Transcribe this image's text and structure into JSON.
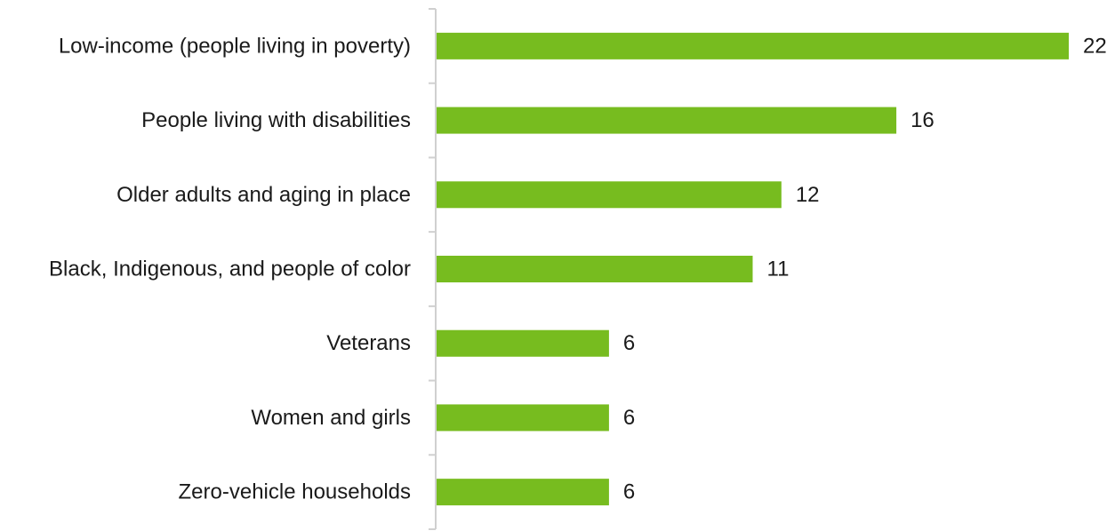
{
  "chart_data": {
    "type": "bar",
    "orientation": "horizontal",
    "categories": [
      "Low-income (people living in poverty)",
      "People living with disabilities",
      "Older adults and aging in place",
      "Black, Indigenous, and people of color",
      "Veterans",
      "Women and girls",
      "Zero-vehicle households"
    ],
    "values": [
      22,
      16,
      12,
      11,
      6,
      6,
      6
    ],
    "value_labels": [
      "22",
      "16",
      "12",
      "11",
      "6",
      "6",
      "6"
    ],
    "title": "",
    "xlabel": "",
    "ylabel": "",
    "xlim": [
      0,
      22
    ],
    "grid": false,
    "legend": "none",
    "bar_color": "#77bc1f",
    "axis_color": "#d0d0d0",
    "text_color": "#1a1a1a"
  }
}
